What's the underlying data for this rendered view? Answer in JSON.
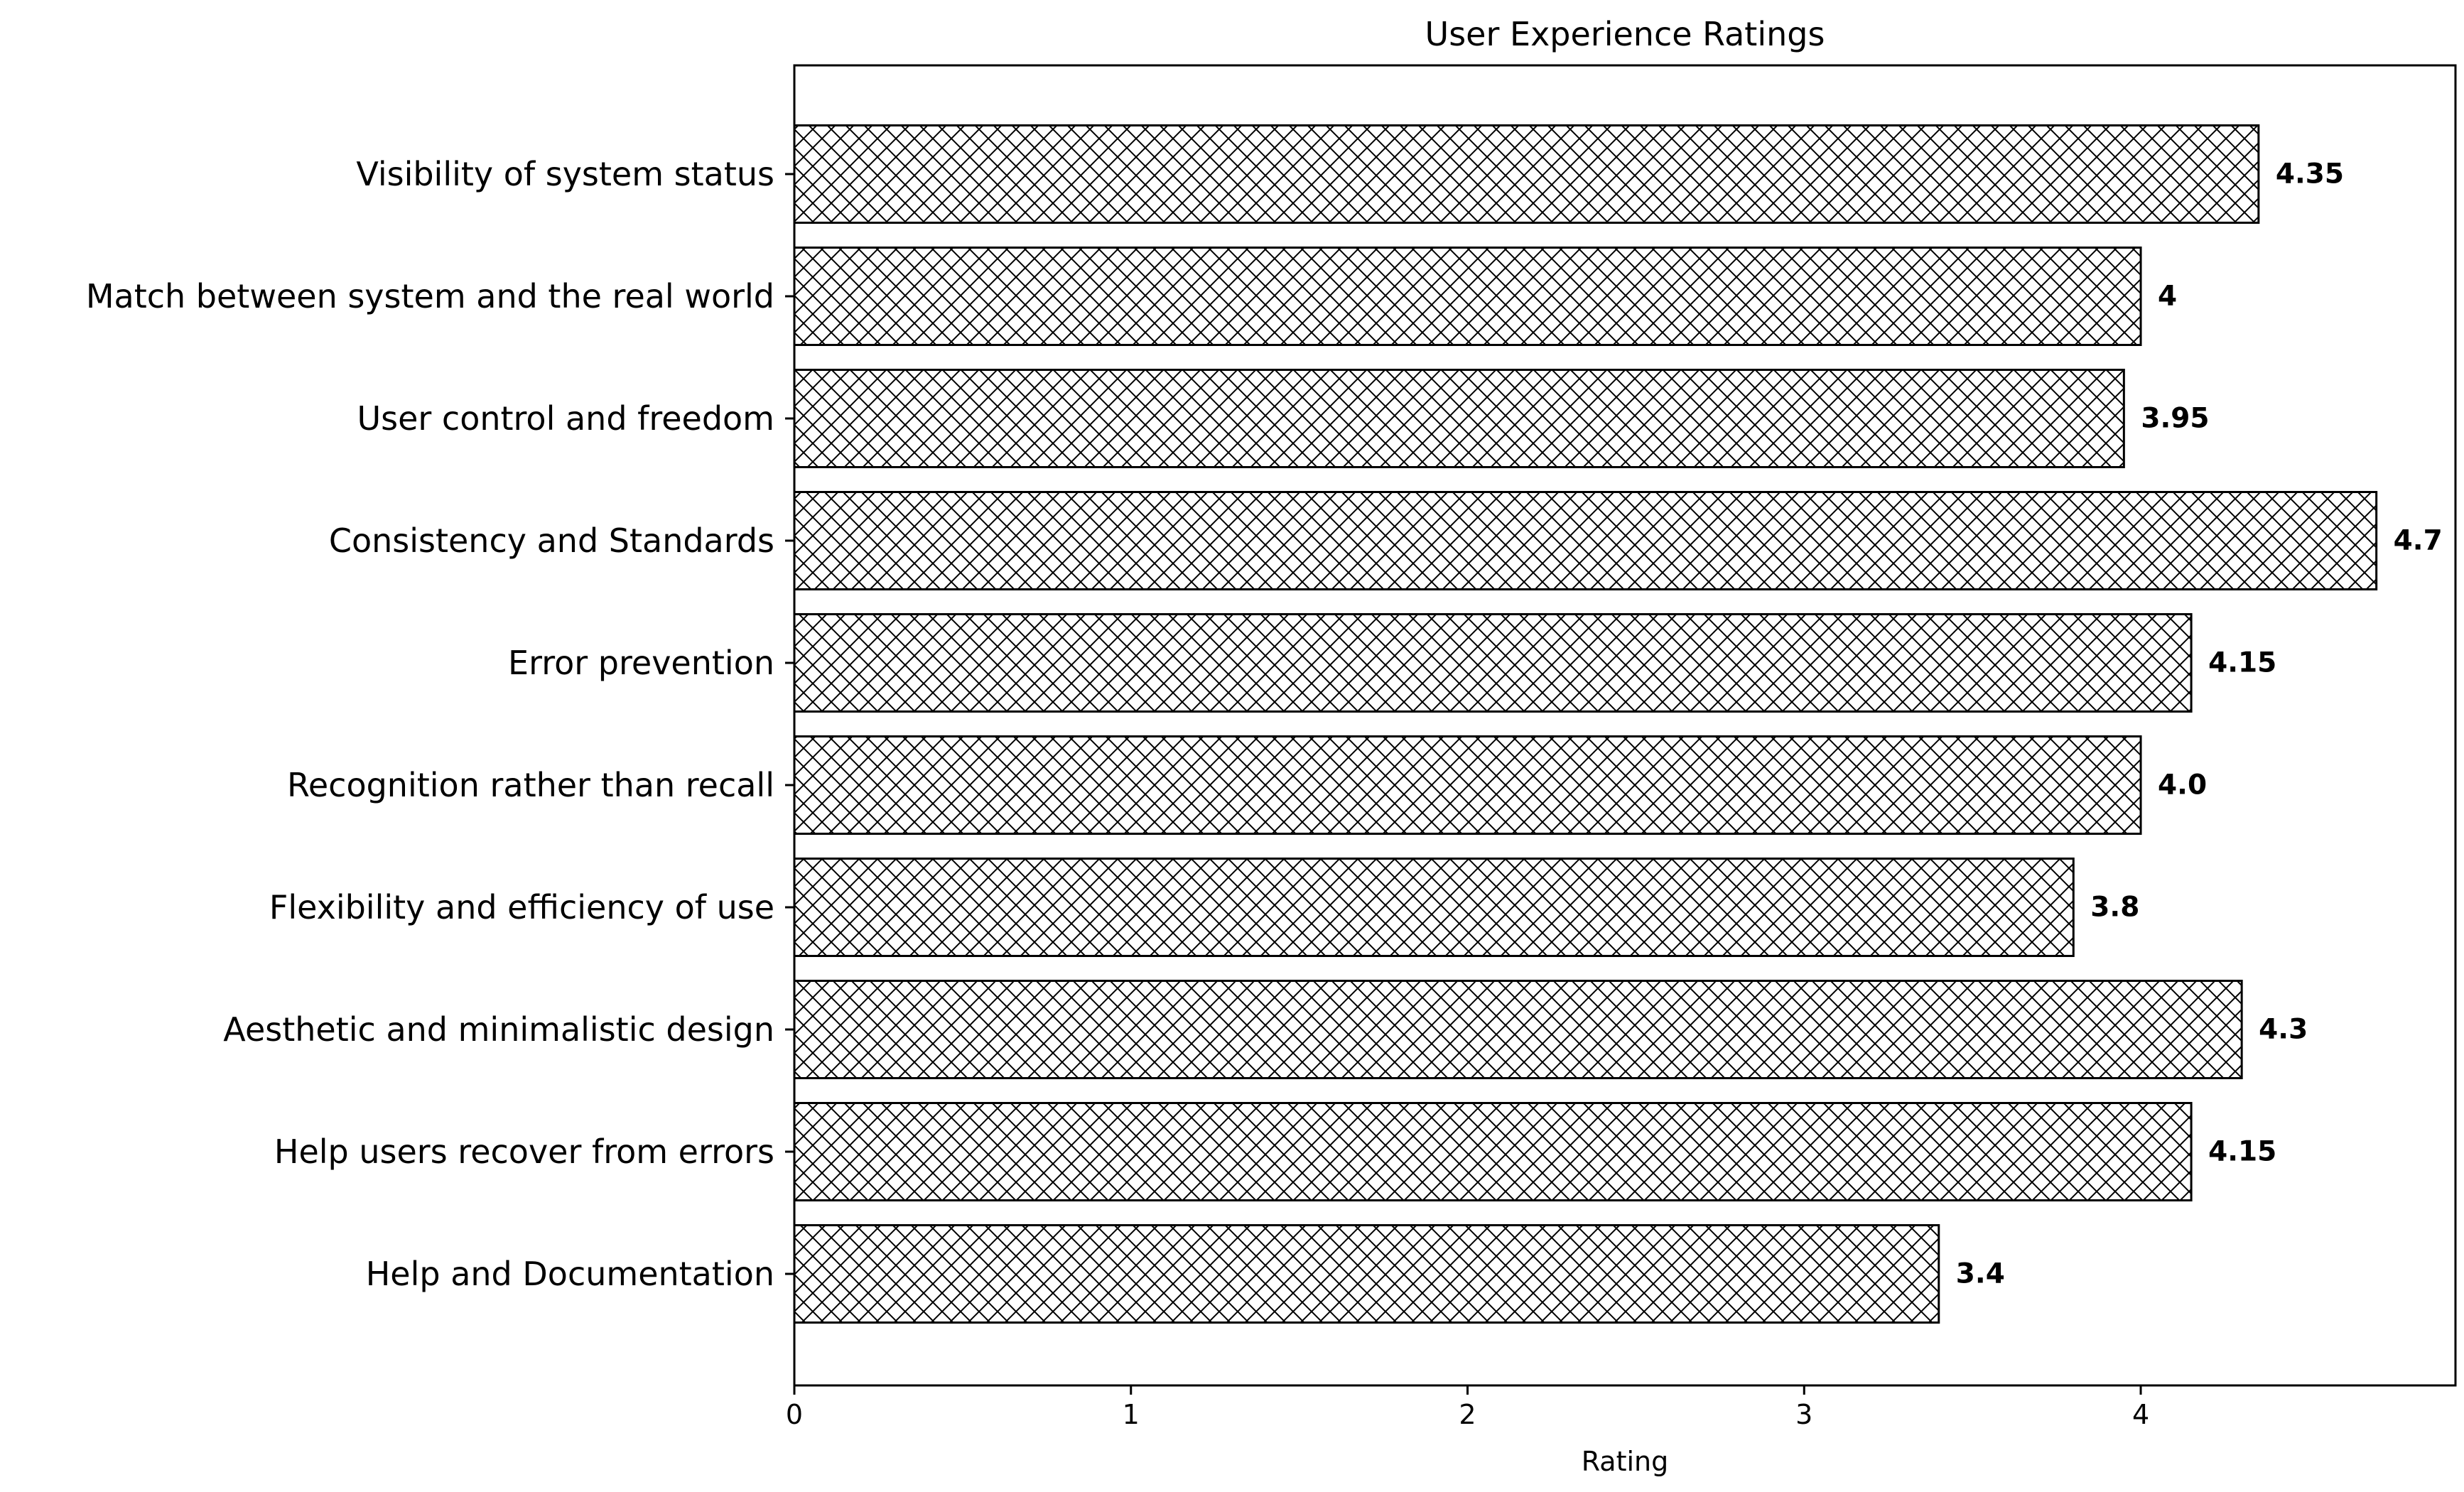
{
  "chart_data": {
    "type": "bar",
    "orientation": "horizontal",
    "title": "User Experience Ratings",
    "xlabel": "Rating",
    "ylabel": "",
    "xlim": [
      0,
      4.935
    ],
    "xticks": [
      0,
      1,
      2,
      3,
      4
    ],
    "grid": false,
    "legend": "none",
    "bar_fill": "#ffffff",
    "bar_edge": "#000000",
    "bar_hatch": "crosshatch",
    "categories": [
      "Visibility of system status",
      "Match between system and the real world",
      "User control and freedom",
      "Consistency and Standards",
      "Error prevention",
      "Recognition rather than recall",
      "Flexibility and efficiency of use",
      "Aesthetic and minimalistic design",
      "Help users recover from errors",
      "Help and Documentation"
    ],
    "values": [
      4.35,
      4,
      3.95,
      4.7,
      4.15,
      4.0,
      3.8,
      4.3,
      4.15,
      3.4
    ],
    "value_labels": [
      "4.35",
      "4",
      "3.95",
      "4.7",
      "4.15",
      "4.0",
      "3.8",
      "4.3",
      "4.15",
      "3.4"
    ]
  }
}
